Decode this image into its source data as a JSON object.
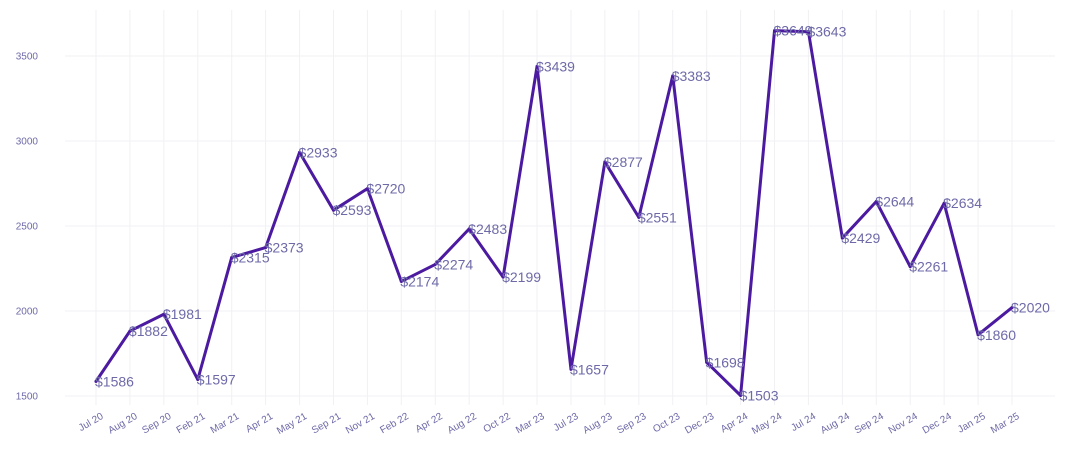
{
  "chart_data": {
    "type": "line",
    "title": "",
    "xlabel": "",
    "ylabel": "",
    "categories": [
      "Jul 20",
      "Aug 20",
      "Sep 20",
      "Feb 21",
      "Mar 21",
      "Apr 21",
      "May 21",
      "Sep 21",
      "Nov 21",
      "Feb 22",
      "Apr 22",
      "Aug 22",
      "Oct 22",
      "Mar 23",
      "Jul 23",
      "Aug 23",
      "Sep 23",
      "Oct 23",
      "Dec 23",
      "Apr 24",
      "May 24",
      "Jul 24",
      "Aug 24",
      "Sep 24",
      "Nov 24",
      "Dec 24",
      "Jan 25",
      "Mar 25"
    ],
    "series": [
      {
        "name": "Value",
        "color": "#4b1aa0",
        "values": [
          1586,
          1882,
          1981,
          1597,
          2315,
          2373,
          2933,
          2593,
          2720,
          2174,
          2274,
          2483,
          2199,
          3439,
          1657,
          2877,
          2551,
          3383,
          1698,
          1503,
          3649,
          3643,
          2429,
          2644,
          2261,
          2634,
          1860,
          2020
        ],
        "labels": [
          "$1586",
          "$1882",
          "$1981",
          "$1597",
          "$2315",
          "$2373",
          "$2933",
          "$2593",
          "$2720",
          "$2174",
          "$2274",
          "$2483",
          "$2199",
          "$3439",
          "$1657",
          "$2877",
          "$2551",
          "$3383",
          "$1698",
          "$1503",
          "$3649",
          "$3643",
          "$2429",
          "$2644",
          "$2261",
          "$2634",
          "$1860",
          "$2020"
        ]
      }
    ],
    "yticks": [
      1500,
      2000,
      2500,
      3000,
      3500
    ],
    "ylim": [
      1450,
      3730
    ],
    "grid": true,
    "legend": "none"
  }
}
